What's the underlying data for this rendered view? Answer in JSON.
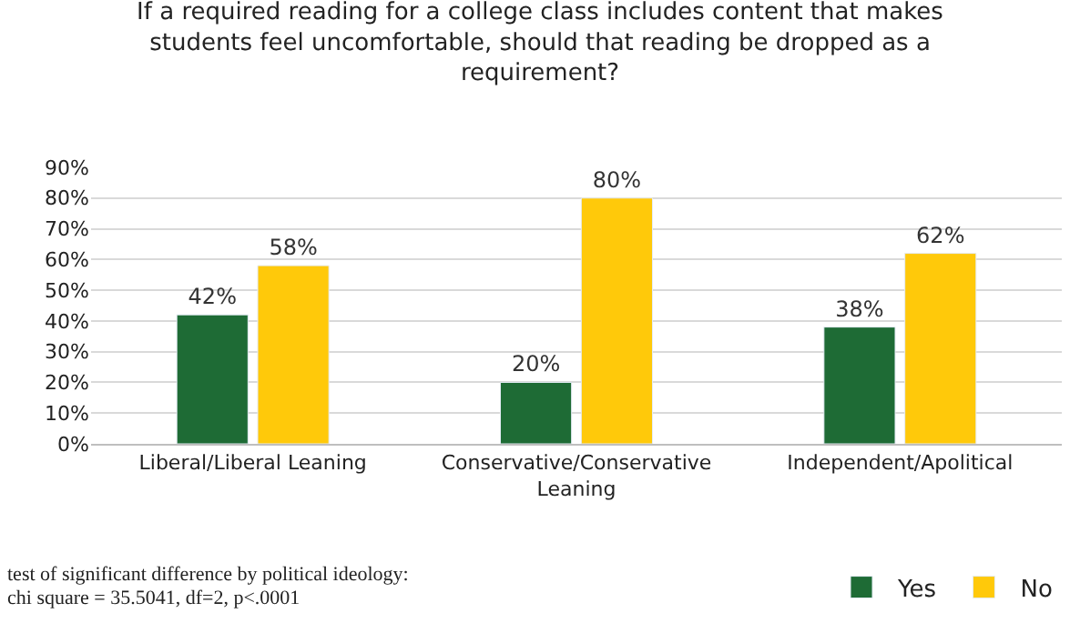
{
  "chart_data": {
    "type": "bar",
    "title": "If a required reading for a college class includes content that makes students feel uncomfortable, should that reading be dropped as a requirement?",
    "categories": [
      "Liberal/Liberal Leaning",
      "Conservative/Conservative Leaning",
      "Independent/Apolitical"
    ],
    "series": [
      {
        "name": "Yes",
        "color": "#1e6b35",
        "values": [
          42,
          20,
          38
        ],
        "value_labels": [
          "42%",
          "20%",
          "38%"
        ]
      },
      {
        "name": "No",
        "color": "#ffc90a",
        "values": [
          58,
          80,
          62
        ],
        "value_labels": [
          "58%",
          "80%",
          "62%"
        ]
      }
    ],
    "ylim": [
      0,
      90
    ],
    "yticks": [
      {
        "value": 0,
        "label": "0%"
      },
      {
        "value": 10,
        "label": "10%"
      },
      {
        "value": 20,
        "label": "20%"
      },
      {
        "value": 30,
        "label": "30%"
      },
      {
        "value": 40,
        "label": "40%"
      },
      {
        "value": 50,
        "label": "50%"
      },
      {
        "value": 60,
        "label": "60%"
      },
      {
        "value": 70,
        "label": "70%"
      },
      {
        "value": 80,
        "label": "80%"
      },
      {
        "value": 90,
        "label": "90%"
      }
    ],
    "grid": "y",
    "legend": "bottom right",
    "annotations": [
      "test of significant difference by political ideology:",
      "chi square = 35.5041, df=2, p<.0001"
    ]
  }
}
